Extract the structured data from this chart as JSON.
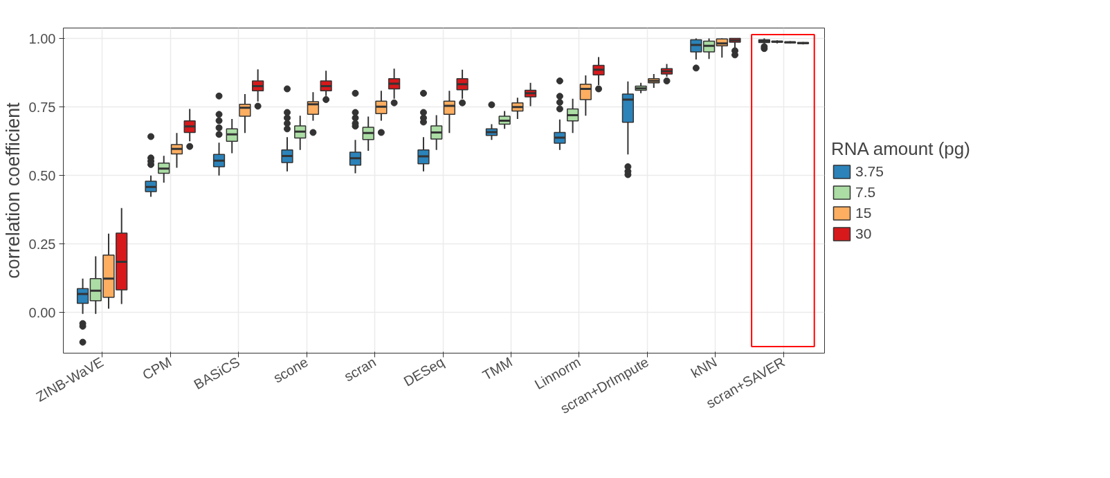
{
  "chart_data": {
    "type": "box",
    "ylabel": "correlation coefficient",
    "legend_title": "RNA amount (pg)",
    "legend": "right",
    "grid": true,
    "categories": [
      "ZINB-WaVE",
      "CPM",
      "BASiCS",
      "scone",
      "scran",
      "DESeq",
      "TMM",
      "Linnorm",
      "scran+DrImpute",
      "kNN",
      "scran+SAVER"
    ],
    "ylim": [
      -0.148,
      1.038
    ],
    "yticks": [
      {
        "value": 0,
        "label": "0.00"
      },
      {
        "value": 0.25,
        "label": "0.25"
      },
      {
        "value": 0.5,
        "label": "0.50"
      },
      {
        "value": 0.75,
        "label": "0.75"
      },
      {
        "value": 1,
        "label": "1.00"
      }
    ],
    "series": [
      {
        "name": "3.75",
        "color": "#2b83ba",
        "boxes": [
          {
            "low": -0.005,
            "q1": 0.034,
            "median": 0.068,
            "q3": 0.087,
            "high": 0.124,
            "outliers": [
              -0.04,
              -0.05,
              -0.108
            ]
          },
          {
            "low": 0.422,
            "q1": 0.441,
            "median": 0.458,
            "q3": 0.479,
            "high": 0.5,
            "outliers": [
              0.54,
              0.552,
              0.564,
              0.642
            ]
          },
          {
            "low": 0.5,
            "q1": 0.532,
            "median": 0.554,
            "q3": 0.577,
            "high": 0.62,
            "outliers": [
              0.65,
              0.674,
              0.7,
              0.723,
              0.79
            ]
          },
          {
            "low": 0.515,
            "q1": 0.547,
            "median": 0.571,
            "q3": 0.593,
            "high": 0.64,
            "outliers": [
              0.67,
              0.69,
              0.71,
              0.73,
              0.816
            ]
          },
          {
            "low": 0.508,
            "q1": 0.538,
            "median": 0.563,
            "q3": 0.585,
            "high": 0.63,
            "outliers": [
              0.68,
              0.69,
              0.71,
              0.73,
              0.8
            ]
          },
          {
            "low": 0.515,
            "q1": 0.543,
            "median": 0.57,
            "q3": 0.593,
            "high": 0.64,
            "outliers": [
              0.695,
              0.71,
              0.73,
              0.8
            ]
          },
          {
            "low": 0.63,
            "q1": 0.646,
            "median": 0.658,
            "q3": 0.67,
            "high": 0.687,
            "outliers": [
              0.758
            ]
          },
          {
            "low": 0.593,
            "q1": 0.618,
            "median": 0.638,
            "q3": 0.657,
            "high": 0.704,
            "outliers": [
              0.743,
              0.767,
              0.789,
              0.845
            ]
          },
          {
            "low": 0.577,
            "q1": 0.694,
            "median": 0.777,
            "q3": 0.797,
            "high": 0.843,
            "outliers": [
              0.503,
              0.515,
              0.532
            ]
          },
          {
            "low": 0.923,
            "q1": 0.951,
            "median": 0.976,
            "q3": 0.995,
            "high": 1.0,
            "outliers": [
              0.892
            ]
          },
          {
            "low": 0.975,
            "q1": 0.985,
            "median": 0.99,
            "q3": 0.995,
            "high": 1.0,
            "outliers": [
              0.963,
              0.97
            ]
          }
        ]
      },
      {
        "name": "7.5",
        "color": "#abdda4",
        "boxes": [
          {
            "low": -0.005,
            "q1": 0.043,
            "median": 0.08,
            "q3": 0.124,
            "high": 0.205
          },
          {
            "low": 0.474,
            "q1": 0.508,
            "median": 0.525,
            "q3": 0.545,
            "high": 0.572
          },
          {
            "low": 0.581,
            "q1": 0.625,
            "median": 0.65,
            "q3": 0.67,
            "high": 0.706
          },
          {
            "low": 0.593,
            "q1": 0.637,
            "median": 0.66,
            "q3": 0.681,
            "high": 0.718
          },
          {
            "low": 0.59,
            "q1": 0.631,
            "median": 0.655,
            "q3": 0.676,
            "high": 0.715
          },
          {
            "low": 0.593,
            "q1": 0.633,
            "median": 0.657,
            "q3": 0.681,
            "high": 0.72
          },
          {
            "low": 0.67,
            "q1": 0.687,
            "median": 0.7,
            "q3": 0.716,
            "high": 0.735
          },
          {
            "low": 0.655,
            "q1": 0.699,
            "median": 0.72,
            "q3": 0.743,
            "high": 0.78
          },
          {
            "low": 0.8,
            "q1": 0.811,
            "median": 0.818,
            "q3": 0.826,
            "high": 0.838
          },
          {
            "low": 0.925,
            "q1": 0.951,
            "median": 0.973,
            "q3": 0.99,
            "high": 1.0
          },
          {
            "low": 0.982,
            "q1": 0.986,
            "median": 0.988,
            "q3": 0.99,
            "high": 0.993
          }
        ]
      },
      {
        "name": "15",
        "color": "#fdae61",
        "boxes": [
          {
            "low": 0.014,
            "q1": 0.056,
            "median": 0.124,
            "q3": 0.21,
            "high": 0.288
          },
          {
            "low": 0.528,
            "q1": 0.579,
            "median": 0.597,
            "q3": 0.613,
            "high": 0.655
          },
          {
            "low": 0.655,
            "q1": 0.716,
            "median": 0.747,
            "q3": 0.76,
            "high": 0.797
          },
          {
            "low": 0.7,
            "q1": 0.723,
            "median": 0.76,
            "q3": 0.769,
            "high": 0.804,
            "outliers": [
              0.657
            ]
          },
          {
            "low": 0.7,
            "q1": 0.726,
            "median": 0.751,
            "q3": 0.771,
            "high": 0.809,
            "outliers": [
              0.657
            ]
          },
          {
            "low": 0.655,
            "q1": 0.723,
            "median": 0.754,
            "q3": 0.771,
            "high": 0.809
          },
          {
            "low": 0.706,
            "q1": 0.735,
            "median": 0.75,
            "q3": 0.765,
            "high": 0.784
          },
          {
            "low": 0.718,
            "q1": 0.777,
            "median": 0.816,
            "q3": 0.833,
            "high": 0.865
          },
          {
            "low": 0.82,
            "q1": 0.838,
            "median": 0.845,
            "q3": 0.853,
            "high": 0.87
          },
          {
            "low": 0.93,
            "q1": 0.973,
            "median": 0.982,
            "q3": 0.998,
            "high": 1.0
          },
          {
            "low": 0.982,
            "q1": 0.984,
            "median": 0.986,
            "q3": 0.987,
            "high": 0.99
          }
        ]
      },
      {
        "name": "30",
        "color": "#d7191c",
        "boxes": [
          {
            "low": 0.031,
            "q1": 0.083,
            "median": 0.185,
            "q3": 0.29,
            "high": 0.381
          },
          {
            "low": 0.625,
            "q1": 0.657,
            "median": 0.679,
            "q3": 0.699,
            "high": 0.743,
            "outliers": [
              0.606
            ]
          },
          {
            "low": 0.77,
            "q1": 0.809,
            "median": 0.826,
            "q3": 0.845,
            "high": 0.887,
            "outliers": [
              0.753
            ]
          },
          {
            "low": 0.79,
            "q1": 0.809,
            "median": 0.826,
            "q3": 0.845,
            "high": 0.882,
            "outliers": [
              0.777
            ]
          },
          {
            "low": 0.78,
            "q1": 0.816,
            "median": 0.835,
            "q3": 0.853,
            "high": 0.89,
            "outliers": [
              0.765
            ]
          },
          {
            "low": 0.78,
            "q1": 0.813,
            "median": 0.833,
            "q3": 0.853,
            "high": 0.886,
            "outliers": [
              0.765
            ]
          },
          {
            "low": 0.753,
            "q1": 0.787,
            "median": 0.8,
            "q3": 0.811,
            "high": 0.838
          },
          {
            "low": 0.83,
            "q1": 0.867,
            "median": 0.886,
            "q3": 0.902,
            "high": 0.932,
            "outliers": [
              0.816
            ]
          },
          {
            "low": 0.86,
            "q1": 0.87,
            "median": 0.88,
            "q3": 0.89,
            "high": 0.907,
            "outliers": [
              0.845
            ]
          },
          {
            "low": 0.965,
            "q1": 0.986,
            "median": 0.993,
            "q3": 1.0,
            "high": 1.0,
            "outliers": [
              0.94,
              0.955
            ]
          },
          {
            "low": 0.978,
            "q1": 0.981,
            "median": 0.983,
            "q3": 0.985,
            "high": 0.987
          }
        ]
      }
    ]
  }
}
